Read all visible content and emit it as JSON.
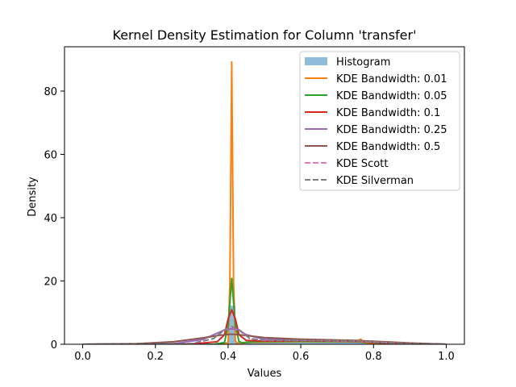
{
  "chart_data": {
    "type": "line",
    "title": "Kernel Density Estimation for Column 'transfer'",
    "xlabel": "Values",
    "ylabel": "Density",
    "xlim": [
      -0.05,
      1.05
    ],
    "ylim": [
      0,
      94
    ],
    "xticks": [
      0.0,
      0.2,
      0.4,
      0.6,
      0.8,
      1.0
    ],
    "xtick_labels": [
      "0.0",
      "0.2",
      "0.4",
      "0.6",
      "0.8",
      "1.0"
    ],
    "yticks": [
      0,
      20,
      40,
      60,
      80
    ],
    "ytick_labels": [
      "0",
      "20",
      "40",
      "60",
      "80"
    ],
    "grid": false,
    "legend_position": "top-right",
    "histogram": {
      "name": "Histogram",
      "color": "#1f77b4",
      "bin_width": 0.02,
      "bins": [
        {
          "x0": 0.38,
          "x1": 0.4,
          "density": 0.8
        },
        {
          "x0": 0.4,
          "x1": 0.42,
          "density": 12.2
        },
        {
          "x0": 0.42,
          "x1": 0.44,
          "density": 0.8
        },
        {
          "x0": 0.44,
          "x1": 0.6,
          "density": 0.7
        },
        {
          "x0": 0.6,
          "x1": 0.78,
          "density": 0.9
        },
        {
          "x0": 0.78,
          "x1": 0.86,
          "density": 0.3
        }
      ]
    },
    "series": [
      {
        "name": "KDE Bandwidth: 0.01",
        "color": "#ff7f0e",
        "dash": "solid",
        "x": [
          0.0,
          0.38,
          0.4,
          0.405,
          0.41,
          0.415,
          0.42,
          0.425,
          0.43,
          0.45,
          0.6,
          0.75,
          0.765,
          0.775,
          0.8,
          1.0
        ],
        "y": [
          0.0,
          0.0,
          0.3,
          20.0,
          89.2,
          20.0,
          1.0,
          0.3,
          0.0,
          0.6,
          0.8,
          0.8,
          1.6,
          0.5,
          0.2,
          0.0
        ]
      },
      {
        "name": "KDE Bandwidth: 0.05",
        "color": "#2ca02c",
        "dash": "solid",
        "x": [
          0.0,
          0.36,
          0.39,
          0.4,
          0.41,
          0.42,
          0.43,
          0.44,
          0.47,
          0.6,
          0.75,
          0.85,
          1.0
        ],
        "y": [
          0.0,
          0.0,
          0.5,
          6.0,
          20.8,
          6.0,
          0.8,
          0.5,
          0.8,
          0.9,
          0.8,
          0.2,
          0.0
        ]
      },
      {
        "name": "KDE Bandwidth: 0.1",
        "color": "#d62728",
        "dash": "solid",
        "x": [
          0.0,
          0.3,
          0.37,
          0.39,
          0.4,
          0.41,
          0.42,
          0.43,
          0.45,
          0.5,
          0.6,
          0.75,
          0.85,
          1.0
        ],
        "y": [
          0.0,
          0.1,
          0.8,
          3.0,
          8.0,
          10.9,
          8.0,
          3.0,
          1.2,
          1.0,
          1.1,
          0.9,
          0.3,
          0.0
        ]
      },
      {
        "name": "KDE Bandwidth: 0.25",
        "color": "#9467bd",
        "dash": "solid",
        "x": [
          0.0,
          0.25,
          0.33,
          0.37,
          0.39,
          0.41,
          0.43,
          0.45,
          0.5,
          0.6,
          0.75,
          0.87,
          1.0
        ],
        "y": [
          0.0,
          0.2,
          1.5,
          3.5,
          4.5,
          4.9,
          4.5,
          3.0,
          1.6,
          1.3,
          1.1,
          0.4,
          0.0
        ]
      },
      {
        "name": "KDE Bandwidth: 0.5",
        "color": "#8c564b",
        "dash": "solid",
        "x": [
          0.0,
          0.15,
          0.25,
          0.33,
          0.38,
          0.41,
          0.44,
          0.5,
          0.6,
          0.75,
          0.9,
          1.0
        ],
        "y": [
          0.0,
          0.2,
          0.8,
          2.0,
          2.9,
          3.2,
          2.9,
          2.1,
          1.6,
          1.2,
          0.4,
          0.0
        ]
      },
      {
        "name": "KDE Scott",
        "color": "#e377c2",
        "dash": "dashed",
        "x": [
          0.0,
          0.3,
          0.36,
          0.39,
          0.41,
          0.43,
          0.46,
          0.5,
          0.6,
          0.75,
          0.87,
          1.0
        ],
        "y": [
          0.0,
          0.2,
          1.8,
          4.5,
          5.4,
          4.5,
          1.8,
          1.2,
          1.2,
          1.0,
          0.3,
          0.0
        ]
      },
      {
        "name": "KDE Silverman",
        "color": "#7f7f7f",
        "dash": "dashed",
        "x": [
          0.0,
          0.3,
          0.36,
          0.39,
          0.41,
          0.43,
          0.46,
          0.5,
          0.6,
          0.75,
          0.87,
          1.0
        ],
        "y": [
          0.0,
          0.2,
          1.8,
          4.6,
          5.6,
          4.6,
          1.8,
          1.2,
          1.2,
          1.0,
          0.3,
          0.0
        ]
      }
    ]
  }
}
